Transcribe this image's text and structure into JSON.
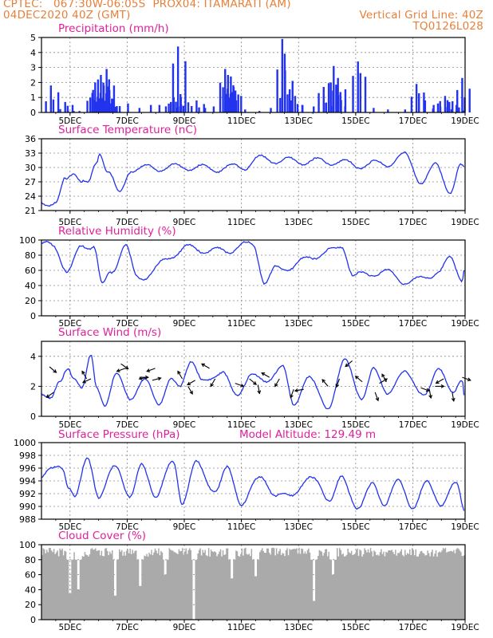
{
  "header": {
    "source": "CPTEC:",
    "coords": "067:30W-06:05S",
    "station": "PROX04: ITAMARATI (AM)",
    "run": "04DEC2020 40Z (GMT)",
    "grid_note": "Vertical Grid Line: 40Z",
    "model": "TQ0126L028"
  },
  "model_altitude_label": "Model Altitude: 129.49 m",
  "date_labels": [
    "5DEC",
    "7DEC",
    "9DEC",
    "11DEC",
    "13DEC",
    "15DEC",
    "17DEC",
    "19DEC"
  ],
  "colors": {
    "series": "#2233ee",
    "cloud": "#aaaaaa",
    "title": "#e0209a",
    "header": "#e8803a",
    "grid": "#888888"
  },
  "chart_data": [
    {
      "type": "bar",
      "title": "Precipitation (mm/h)",
      "ylim": [
        0,
        5
      ],
      "yticks": [
        0,
        1,
        2,
        3,
        4,
        5
      ],
      "x_range": [
        4.17,
        19.0
      ],
      "x": [
        4.5,
        5.0,
        5.95,
        6.05,
        6.15,
        6.25,
        6.35,
        6.45,
        6.55,
        6.65,
        8.7,
        8.8,
        8.95,
        9.05,
        9.6,
        10.6,
        10.7,
        10.8,
        10.9,
        12.6,
        12.7,
        13.05,
        14.05,
        14.3,
        14.4,
        14.55,
        15.25,
        17.3,
        18.05,
        18.3,
        18.7,
        18.9
      ],
      "values": [
        1.8,
        0.7,
        1.3,
        2.0,
        2.2,
        2.5,
        1.8,
        2.9,
        1.5,
        0.9,
        0.7,
        1.0,
        4.4,
        1.0,
        0.8,
        2.9,
        2.5,
        2.4,
        1.7,
        4.9,
        2.8,
        1.1,
        1.7,
        2.0,
        3.1,
        2.3,
        3.4,
        1.9,
        0.6,
        1.1,
        0.5,
        2.3
      ],
      "drizzle_x": [
        5.1,
        5.3,
        5.5,
        6.8,
        7.2,
        7.6,
        8.0,
        8.3,
        9.9,
        10.2,
        11.3,
        11.8,
        12.2,
        12.9,
        13.3,
        13.7,
        14.8,
        15.8,
        16.3,
        16.9,
        17.6,
        17.9,
        18.45
      ],
      "drizzle_values": [
        0.1,
        0.1,
        0.1,
        0.4,
        0.6,
        0.3,
        0.5,
        0.5,
        0.3,
        0.4,
        0.2,
        0.1,
        0.3,
        0.8,
        0.5,
        0.4,
        0.4,
        0.3,
        0.2,
        0.2,
        0.8,
        0.5,
        0.7
      ]
    },
    {
      "type": "line",
      "title": "Surface Temperature (nC)",
      "ylim": [
        21,
        36
      ],
      "yticks": [
        21,
        24,
        27,
        30,
        33,
        36
      ],
      "x_range": [
        4.17,
        19.0
      ],
      "diurnal": {
        "mean": 27.0,
        "amplitude": 3.4,
        "peak_phase": 0.83
      },
      "points": [
        [
          4.17,
          22.0
        ],
        [
          4.5,
          21.2
        ],
        [
          4.7,
          21.0
        ],
        [
          5.0,
          27.5
        ],
        [
          5.3,
          30.0
        ],
        [
          5.6,
          27.0
        ],
        [
          5.8,
          26.0
        ],
        [
          6.1,
          32.0
        ],
        [
          6.2,
          35.2
        ],
        [
          6.5,
          30.0
        ],
        [
          6.9,
          23.5
        ],
        [
          7.3,
          30.5
        ],
        [
          8.3,
          30.8
        ],
        [
          9.3,
          31.0
        ],
        [
          10.2,
          30.5
        ],
        [
          11.2,
          31.0
        ],
        [
          11.8,
          33.2
        ],
        [
          12.8,
          32.6
        ],
        [
          14.4,
          32.4
        ],
        [
          15.3,
          31.5
        ],
        [
          16.3,
          32.0
        ],
        [
          16.9,
          34.0
        ],
        [
          17.5,
          27.0
        ],
        [
          18.0,
          31.4
        ],
        [
          18.5,
          24.5
        ],
        [
          18.85,
          30.8
        ],
        [
          19.0,
          30.2
        ]
      ]
    },
    {
      "type": "line",
      "title": "Relative Humidity (%)",
      "ylim": [
        0,
        100
      ],
      "yticks": [
        0,
        20,
        40,
        60,
        80,
        100
      ],
      "x_range": [
        4.17,
        19.0
      ],
      "diurnal": {
        "mean": 68,
        "amplitude": 22,
        "peak_phase": 0.33
      },
      "points": [
        [
          4.17,
          100
        ],
        [
          4.6,
          100
        ],
        [
          5.1,
          55
        ],
        [
          5.6,
          100
        ],
        [
          6.0,
          100
        ],
        [
          6.3,
          30
        ],
        [
          6.6,
          55
        ],
        [
          7.1,
          100
        ],
        [
          7.5,
          45
        ],
        [
          9.3,
          95
        ],
        [
          10.5,
          90
        ],
        [
          11.3,
          100
        ],
        [
          11.6,
          100
        ],
        [
          12.0,
          38
        ],
        [
          12.4,
          60
        ],
        [
          14.4,
          90
        ],
        [
          14.7,
          100
        ],
        [
          15.1,
          48
        ],
        [
          16.1,
          55
        ],
        [
          17.1,
          38
        ],
        [
          18.1,
          55
        ],
        [
          18.5,
          78
        ],
        [
          18.9,
          45
        ],
        [
          19.0,
          70
        ]
      ]
    },
    {
      "type": "line",
      "title": "Surface Wind (m/s)",
      "ylim": [
        0,
        5
      ],
      "yticks": [
        0,
        2,
        4
      ],
      "x_range": [
        4.17,
        19.0
      ],
      "diurnal": {
        "mean": 2.0,
        "amplitude": 0.6,
        "peak_phase": 0.75
      },
      "points": [
        [
          4.17,
          1.5
        ],
        [
          4.5,
          1.0
        ],
        [
          4.8,
          2.2
        ],
        [
          5.1,
          3.6
        ],
        [
          5.3,
          2.8
        ],
        [
          5.6,
          1.8
        ],
        [
          5.9,
          4.6
        ],
        [
          6.1,
          2.0
        ],
        [
          6.4,
          0.4
        ],
        [
          6.8,
          3.0
        ],
        [
          7.3,
          1.0
        ],
        [
          7.8,
          2.5
        ],
        [
          8.3,
          0.6
        ],
        [
          8.7,
          2.5
        ],
        [
          9.0,
          2.0
        ],
        [
          9.4,
          4.2
        ],
        [
          9.8,
          2.4
        ],
        [
          10.5,
          3.2
        ],
        [
          11.0,
          1.2
        ],
        [
          11.5,
          3.0
        ],
        [
          12.0,
          2.4
        ],
        [
          12.6,
          3.7
        ],
        [
          13.0,
          0.4
        ],
        [
          13.5,
          2.8
        ],
        [
          14.2,
          0.2
        ],
        [
          14.8,
          4.2
        ],
        [
          15.4,
          1.0
        ],
        [
          15.8,
          3.4
        ],
        [
          16.3,
          1.5
        ],
        [
          16.9,
          3.2
        ],
        [
          17.6,
          1.2
        ],
        [
          18.1,
          3.6
        ],
        [
          18.6,
          1.4
        ],
        [
          18.9,
          2.4
        ],
        [
          19.0,
          0.6
        ]
      ],
      "vectors": [
        [
          4.45,
          3.3,
          -40
        ],
        [
          4.6,
          1.6,
          -145
        ],
        [
          5.75,
          2.5,
          120
        ],
        [
          5.9,
          2.5,
          -155
        ],
        [
          6.95,
          3.5,
          -35
        ],
        [
          7.1,
          3.2,
          -160
        ],
        [
          7.6,
          2.6,
          0
        ],
        [
          7.9,
          2.6,
          -170
        ],
        [
          8.05,
          2.4,
          15
        ],
        [
          8.15,
          3.2,
          -160
        ],
        [
          9.1,
          2.5,
          120
        ],
        [
          9.3,
          2.0,
          -60
        ],
        [
          9.55,
          2.4,
          -150
        ],
        [
          10.05,
          3.2,
          150
        ],
        [
          10.25,
          2.5,
          -120
        ],
        [
          10.95,
          2.2,
          -20
        ],
        [
          11.45,
          2.5,
          -40
        ],
        [
          11.75,
          2.1,
          -80
        ],
        [
          12.15,
          2.6,
          150
        ],
        [
          12.5,
          2.5,
          -120
        ],
        [
          13.0,
          1.8,
          -110
        ],
        [
          13.35,
          1.8,
          -170
        ],
        [
          14.2,
          2.0,
          130
        ],
        [
          14.6,
          2.5,
          -110
        ],
        [
          15.05,
          3.7,
          -140
        ],
        [
          15.4,
          2.3,
          140
        ],
        [
          15.85,
          1.6,
          -70
        ],
        [
          16.0,
          2.2,
          30
        ],
        [
          16.25,
          2.3,
          120
        ],
        [
          17.45,
          1.9,
          -20
        ],
        [
          17.75,
          1.8,
          -80
        ],
        [
          17.95,
          2.0,
          0
        ],
        [
          18.25,
          2.5,
          -150
        ],
        [
          18.55,
          1.6,
          -80
        ],
        [
          18.9,
          2.6,
          -20
        ]
      ]
    },
    {
      "type": "line",
      "title": "Surface Pressure (hPa)",
      "ylim": [
        988,
        1000
      ],
      "yticks": [
        988,
        990,
        992,
        994,
        996,
        998,
        1000
      ],
      "x_range": [
        4.17,
        19.0
      ],
      "diurnal": {
        "mean": 994,
        "amplitude": 3.0,
        "peak_phase": 0.54
      },
      "points": [
        [
          4.17,
          995.3
        ],
        [
          4.5,
          995.8
        ],
        [
          4.9,
          997.0
        ],
        [
          5.15,
          993.0
        ],
        [
          5.35,
          990.5
        ],
        [
          5.8,
          998.6
        ],
        [
          6.2,
          991.0
        ],
        [
          6.8,
          997.0
        ],
        [
          7.3,
          990.8
        ],
        [
          7.7,
          997.0
        ],
        [
          8.2,
          991.2
        ],
        [
          8.8,
          997.8
        ],
        [
          9.1,
          990.0
        ],
        [
          9.6,
          997.3
        ],
        [
          10.3,
          992.0
        ],
        [
          10.7,
          996.4
        ],
        [
          11.2,
          989.5
        ],
        [
          11.9,
          995.2
        ],
        [
          12.4,
          990.5
        ],
        [
          13.8,
          994.2
        ],
        [
          14.3,
          990.0
        ],
        [
          14.7,
          994.5
        ],
        [
          15.3,
          988.5
        ],
        [
          15.8,
          993.5
        ],
        [
          16.2,
          989.5
        ],
        [
          16.7,
          993.8
        ],
        [
          17.2,
          988.8
        ],
        [
          17.7,
          993.5
        ],
        [
          18.2,
          989.5
        ],
        [
          18.7,
          993.2
        ],
        [
          19.0,
          988.5
        ]
      ]
    },
    {
      "type": "bar",
      "title": "Cloud Cover (%)",
      "ylim": [
        0,
        100
      ],
      "yticks": [
        0,
        20,
        40,
        60,
        80,
        100
      ],
      "x_range": [
        4.17,
        19.0
      ],
      "values_note": "dense hourly bars, mostly 78-95%",
      "base": 90,
      "dips": [
        [
          5.15,
          35
        ],
        [
          5.45,
          40
        ],
        [
          6.75,
          32
        ],
        [
          7.6,
          45
        ],
        [
          8.5,
          60
        ],
        [
          9.5,
          0
        ],
        [
          10.8,
          55
        ],
        [
          11.65,
          58
        ],
        [
          13.7,
          25
        ],
        [
          14.35,
          60
        ]
      ]
    }
  ]
}
